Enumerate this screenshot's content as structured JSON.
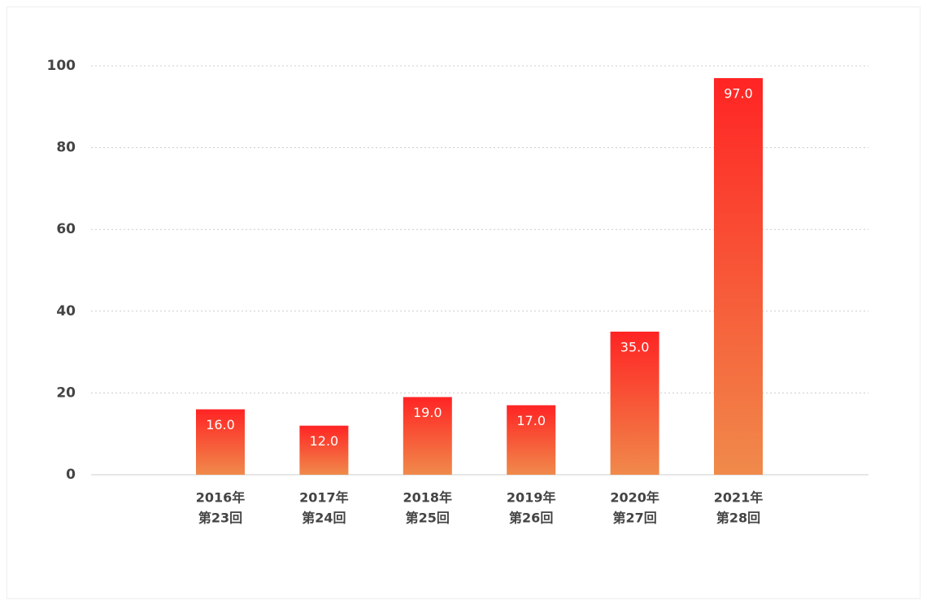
{
  "chart_data": {
    "type": "bar",
    "categories": [
      [
        "2016年",
        "第23回"
      ],
      [
        "2017年",
        "第24回"
      ],
      [
        "2018年",
        "第25回"
      ],
      [
        "2019年",
        "第26回"
      ],
      [
        "2020年",
        "第27回"
      ],
      [
        "2021年",
        "第28回"
      ]
    ],
    "values": [
      16,
      12,
      19,
      17,
      35,
      97
    ],
    "value_labels": [
      "16.0",
      "12.0",
      "19.0",
      "17.0",
      "35.0",
      "97.0"
    ],
    "gradient": [
      "#ff2424",
      "#f08a4b"
    ],
    "ylim": [
      0,
      100
    ],
    "yticks": [
      0,
      20,
      40,
      60,
      80,
      100
    ],
    "grid": true
  }
}
